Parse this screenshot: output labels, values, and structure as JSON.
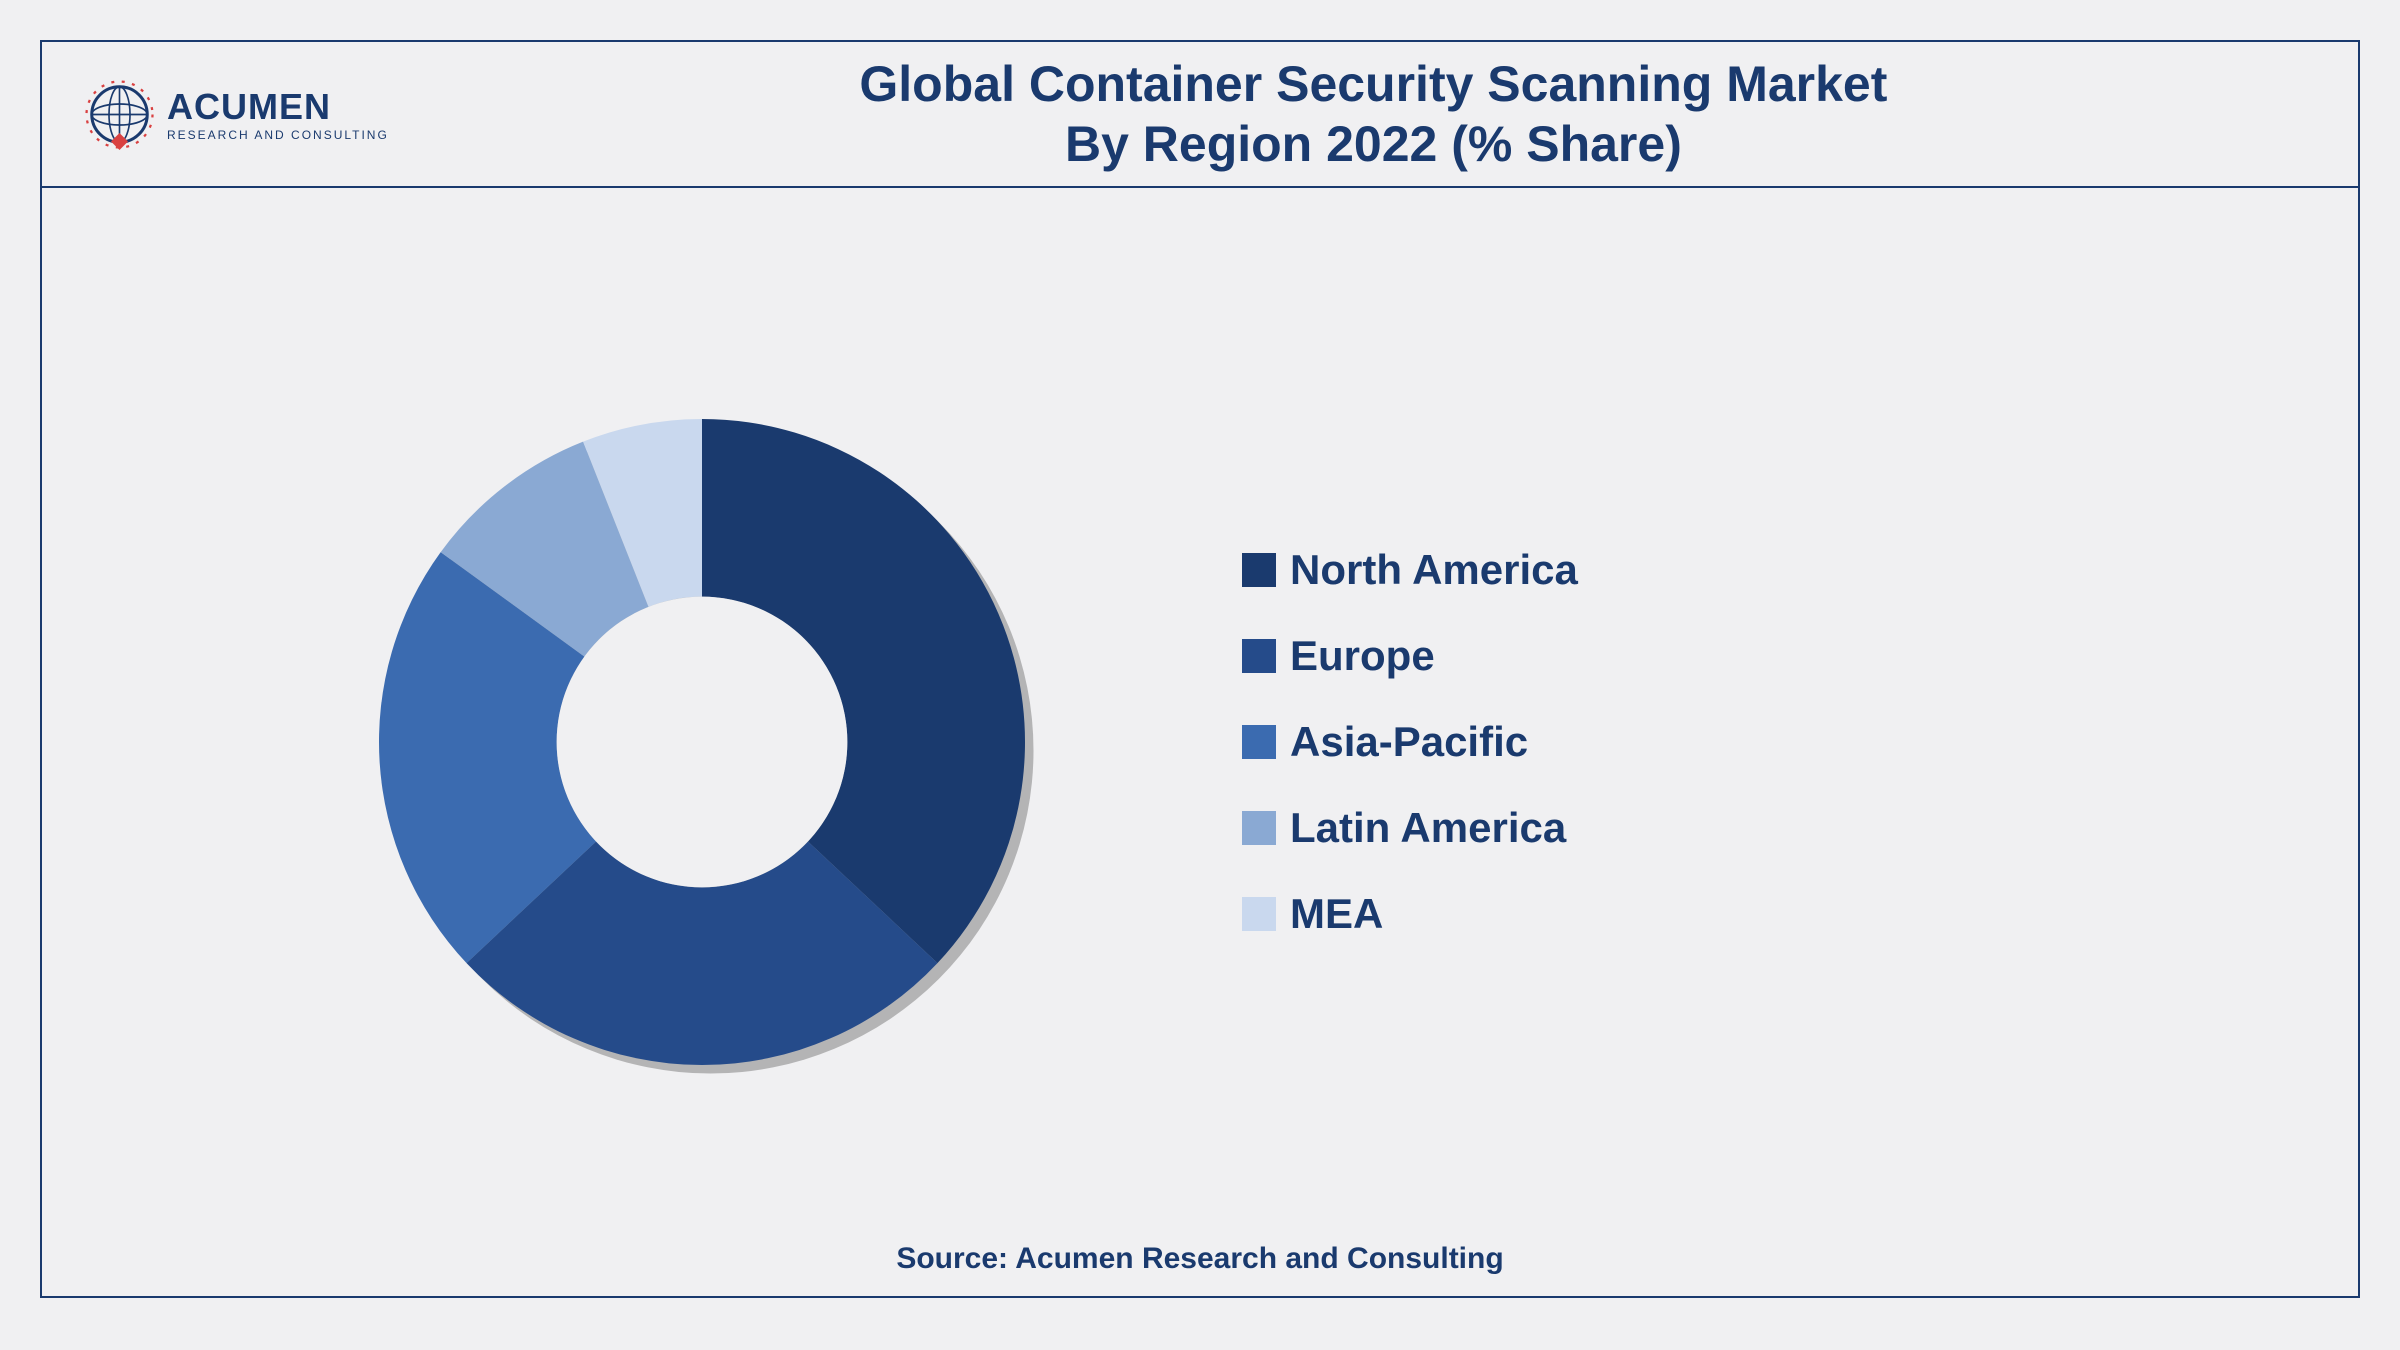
{
  "logo": {
    "name": "ACUMEN",
    "tagline": "RESEARCH AND CONSULTING",
    "globe_stroke": "#1a3a6e",
    "accent_diamond": "#d94141"
  },
  "title": {
    "line1": "Global Container Security Scanning Market",
    "line2": "By Region 2022 (% Share)",
    "color": "#1a3a6e",
    "fontsize": 50
  },
  "chart": {
    "type": "donut",
    "inner_radius_ratio": 0.45,
    "background": "#f0f0f2",
    "shadow_color": "rgba(0,0,0,0.25)",
    "slices": [
      {
        "label": "North America",
        "value": 37,
        "color": "#1a3a6e"
      },
      {
        "label": "Europe",
        "value": 26,
        "color": "#254b8a"
      },
      {
        "label": "Asia-Pacific",
        "value": 22,
        "color": "#3b6bb0"
      },
      {
        "label": "Latin America",
        "value": 9,
        "color": "#8aa9d3"
      },
      {
        "label": "MEA",
        "value": 6,
        "color": "#c9d8ee"
      }
    ],
    "legend": {
      "marker_size": 34,
      "label_color": "#1a3a6e",
      "label_fontsize": 42
    }
  },
  "source": {
    "text": "Source: Acumen Research and Consulting",
    "color": "#1a3a6e",
    "fontsize": 30
  },
  "border_color": "#1a3a6e"
}
